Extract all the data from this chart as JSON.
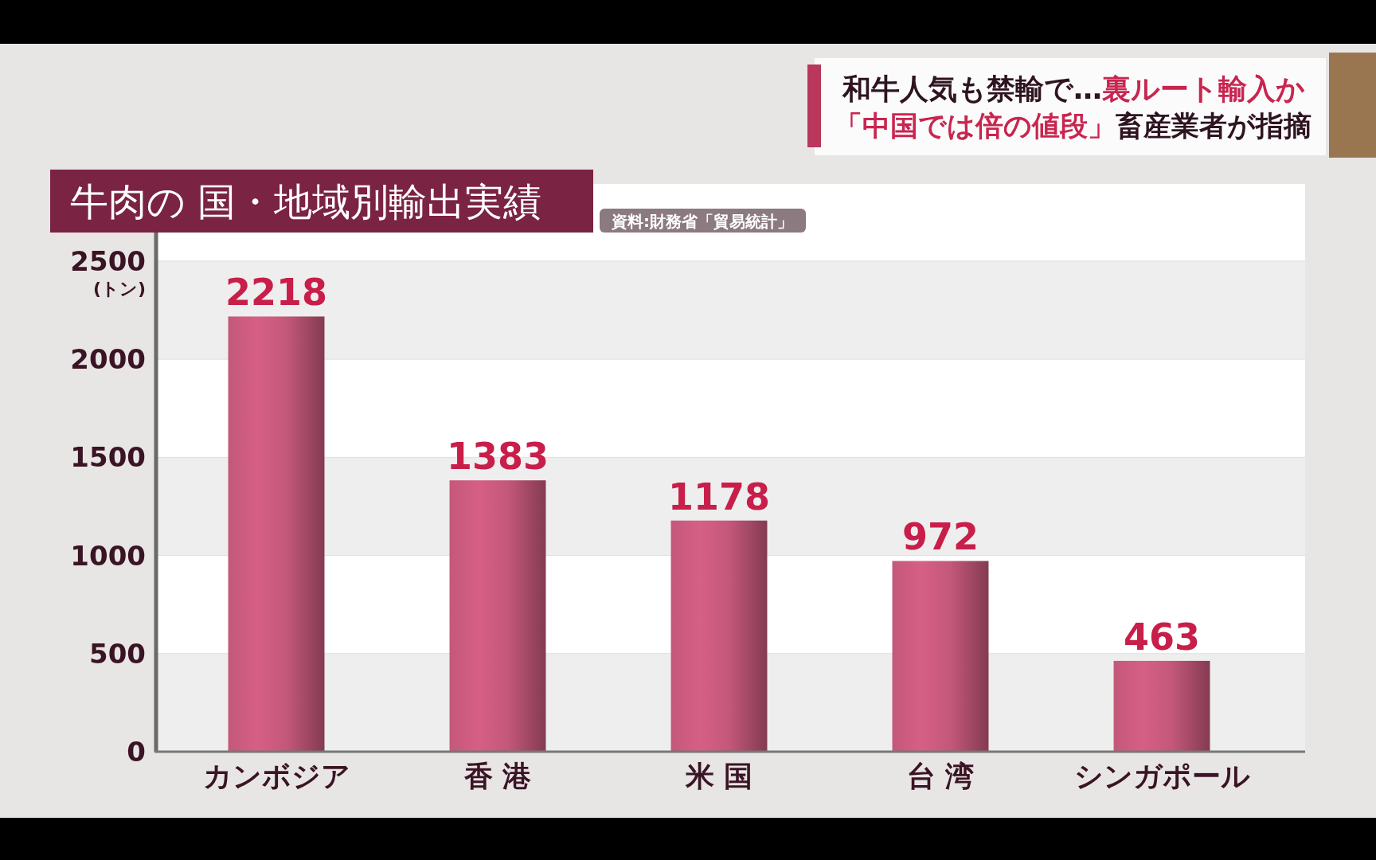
{
  "chart_data": {
    "type": "bar",
    "title": "牛肉の 国・地域別輸出実績",
    "ylabel": "(トン)",
    "annotations": [
      "和牛人気も禁輸で…",
      "裏ルート輸入か",
      "「中国では倍の値段」",
      "畜産業者が指摘",
      "資料:財務省「貿易統計」"
    ],
    "categories": [
      "カンボジア",
      "香 港",
      "米 国",
      "台 湾",
      "シンガポール"
    ],
    "values": [
      2218,
      1383,
      1178,
      972,
      463
    ],
    "color": "#c4587a",
    "ylim": [
      0,
      2650
    ],
    "yticks": [
      0,
      500,
      1000,
      1500,
      2000,
      2500
    ],
    "grid": "y",
    "data_labels": true
  }
}
